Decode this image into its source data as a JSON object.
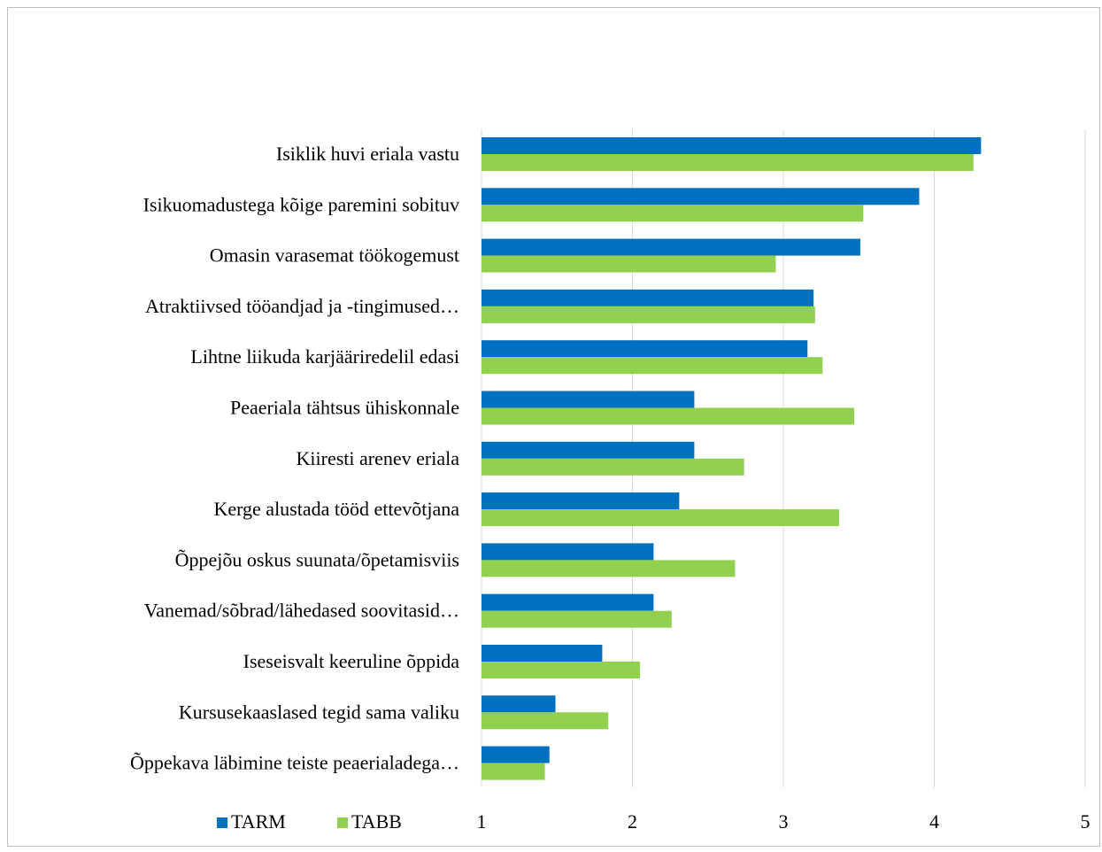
{
  "chart_data": {
    "type": "bar",
    "orientation": "horizontal",
    "categories": [
      "Isiklik huvi eriala vastu",
      "Isikuomadustega kõige paremini sobituv",
      "Omasin varasemat töökogemust",
      "Atraktiivsed tööandjad ja -tingimused…",
      "Lihtne liikuda karjääriredelil edasi",
      "Peaeriala tähtsus ühiskonnale",
      "Kiiresti arenev eriala",
      "Kerge alustada tööd ettevõtjana",
      "Õppejõu oskus suunata/õpetamisviis",
      "Vanemad/sõbrad/lähedased soovitasid…",
      "Iseseisvalt keeruline õppida",
      "Kursusekaaslased tegid sama valiku",
      "Õppekava läbimine teiste peaerialadega…"
    ],
    "series": [
      {
        "name": "TARM",
        "color": "#0070c0",
        "values": [
          4.31,
          3.9,
          3.51,
          3.2,
          3.16,
          2.41,
          2.41,
          2.31,
          2.14,
          2.14,
          1.8,
          1.49,
          1.45
        ]
      },
      {
        "name": "TABB",
        "color": "#92d050",
        "values": [
          4.26,
          3.53,
          2.95,
          3.21,
          3.26,
          3.47,
          2.74,
          3.37,
          2.68,
          2.26,
          2.05,
          1.84,
          1.42
        ]
      }
    ],
    "xlim": [
      1,
      5
    ],
    "x_ticks": [
      "1",
      "2",
      "3",
      "4",
      "5"
    ],
    "grid": true,
    "legend_position": "bottom-left"
  }
}
